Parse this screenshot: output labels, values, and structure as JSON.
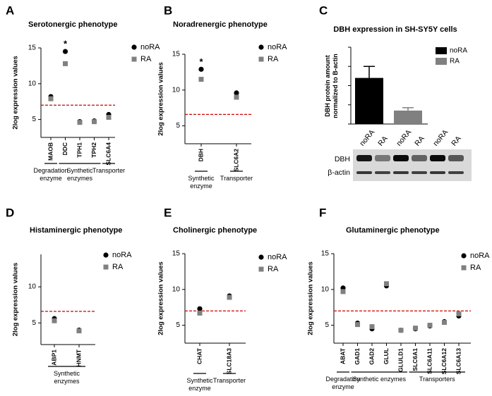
{
  "chart_data": [
    {
      "type": "scatter",
      "panel": "A",
      "title": "Serotonergic phenotype",
      "ylabel": "2log expression values",
      "categories": [
        "MAOB",
        "DDC",
        "TPH1",
        "TPH2",
        "SLC6A4"
      ],
      "groups": [
        "Degradation enzyme",
        "Synthetic enzymes",
        null,
        null,
        "Transporter"
      ],
      "significance": [
        null,
        "*",
        null,
        null,
        null
      ],
      "series": [
        {
          "name": "noRA",
          "color": "#000000",
          "marker": "circle",
          "values": [
            8.2,
            14.5,
            4.7,
            4.8,
            5.7
          ]
        },
        {
          "name": "RA",
          "color": "#808080",
          "marker": "square",
          "values": [
            7.9,
            12.8,
            4.6,
            4.7,
            5.3
          ]
        }
      ],
      "threshold": 7,
      "threshold_color": "#d00000",
      "ylim": [
        2.5,
        15
      ],
      "yticks": [
        5,
        10,
        15
      ]
    },
    {
      "type": "scatter",
      "panel": "B",
      "title": "Noradrenergic phenotype",
      "ylabel": "2log expression values",
      "categories": [
        "DBH",
        "SLC6A2"
      ],
      "groups": [
        "Synthetic enzyme",
        "Transporter"
      ],
      "significance": [
        "*",
        null
      ],
      "series": [
        {
          "name": "noRA",
          "color": "#000000",
          "marker": "circle",
          "values": [
            12.9,
            9.6
          ]
        },
        {
          "name": "RA",
          "color": "#808080",
          "marker": "square",
          "values": [
            11.5,
            9.0
          ]
        }
      ],
      "threshold": 6.6,
      "threshold_color": "#d00000",
      "ylim": [
        2.5,
        15
      ],
      "yticks": [
        5,
        10,
        15
      ]
    },
    {
      "type": "bar",
      "panel": "C",
      "title": "DBH expression in SH-SY5Y cells",
      "ylabel": "DBH protein amount normalized to B-actin",
      "series": [
        {
          "name": "noRA",
          "color": "#000000",
          "values": [
            2.4
          ],
          "errors": [
            0.6
          ]
        },
        {
          "name": "RA",
          "color": "#808080",
          "values": [
            0.7
          ],
          "errors": [
            0.15
          ]
        }
      ],
      "ylim": [
        0,
        4
      ],
      "yticks": [
        0,
        1,
        2,
        3,
        4
      ],
      "blot": {
        "lanes": [
          "noRA",
          "RA",
          "noRA",
          "RA",
          "noRA",
          "RA"
        ],
        "rows": [
          "DBH",
          "β-actin"
        ]
      }
    },
    {
      "type": "scatter",
      "panel": "D",
      "title": "Histaminergic phenotype",
      "ylabel": "2log expression values",
      "categories": [
        "ABP1",
        "HNMT"
      ],
      "groups": [
        "Synthetic enzymes",
        null
      ],
      "series": [
        {
          "name": "noRA",
          "color": "#000000",
          "marker": "circle",
          "values": [
            5.6,
            4.0
          ]
        },
        {
          "name": "RA",
          "color": "#808080",
          "marker": "square",
          "values": [
            5.3,
            3.9
          ]
        }
      ],
      "threshold": 6.6,
      "threshold_color": "#d00000",
      "ylim": [
        2,
        14.5
      ],
      "yticks": [
        5,
        10
      ]
    },
    {
      "type": "scatter",
      "panel": "E",
      "title": "Cholinergic phenotype",
      "ylabel": "2log expression values",
      "categories": [
        "CHAT",
        "SLC18A3"
      ],
      "groups": [
        "Synthetic enzyme",
        "Transporter"
      ],
      "series": [
        {
          "name": "noRA",
          "color": "#000000",
          "marker": "circle",
          "values": [
            7.3,
            9.1
          ]
        },
        {
          "name": "RA",
          "color": "#808080",
          "marker": "square",
          "values": [
            6.7,
            8.9
          ]
        }
      ],
      "threshold": 7,
      "threshold_color": "#d00000",
      "ylim": [
        2.5,
        15
      ],
      "yticks": [
        5,
        10,
        15
      ]
    },
    {
      "type": "scatter",
      "panel": "F",
      "title": "Glutaminergic phenotype",
      "ylabel": "2log expression values",
      "categories": [
        "ABAT",
        "GAD1",
        "GAD2",
        "GLUL",
        "GLULD1",
        "SLC6A1",
        "SLC6A11",
        "SLC6A12",
        "SLC6A13"
      ],
      "groups": [
        "Degradation enzyme",
        "Synthetic enzymes",
        null,
        null,
        null,
        "Transporters",
        null,
        null,
        null
      ],
      "series": [
        {
          "name": "noRA",
          "color": "#000000",
          "marker": "circle",
          "values": [
            10.2,
            5.3,
            4.5,
            10.5,
            4.3,
            4.5,
            4.9,
            5.5,
            6.3
          ]
        },
        {
          "name": "RA",
          "color": "#808080",
          "marker": "square",
          "values": [
            9.7,
            5.1,
            4.8,
            10.8,
            4.3,
            4.6,
            5.0,
            5.4,
            6.6
          ]
        }
      ],
      "threshold": 7,
      "threshold_color": "#d00000",
      "ylim": [
        2.5,
        15
      ],
      "yticks": [
        5,
        10,
        15
      ]
    }
  ]
}
